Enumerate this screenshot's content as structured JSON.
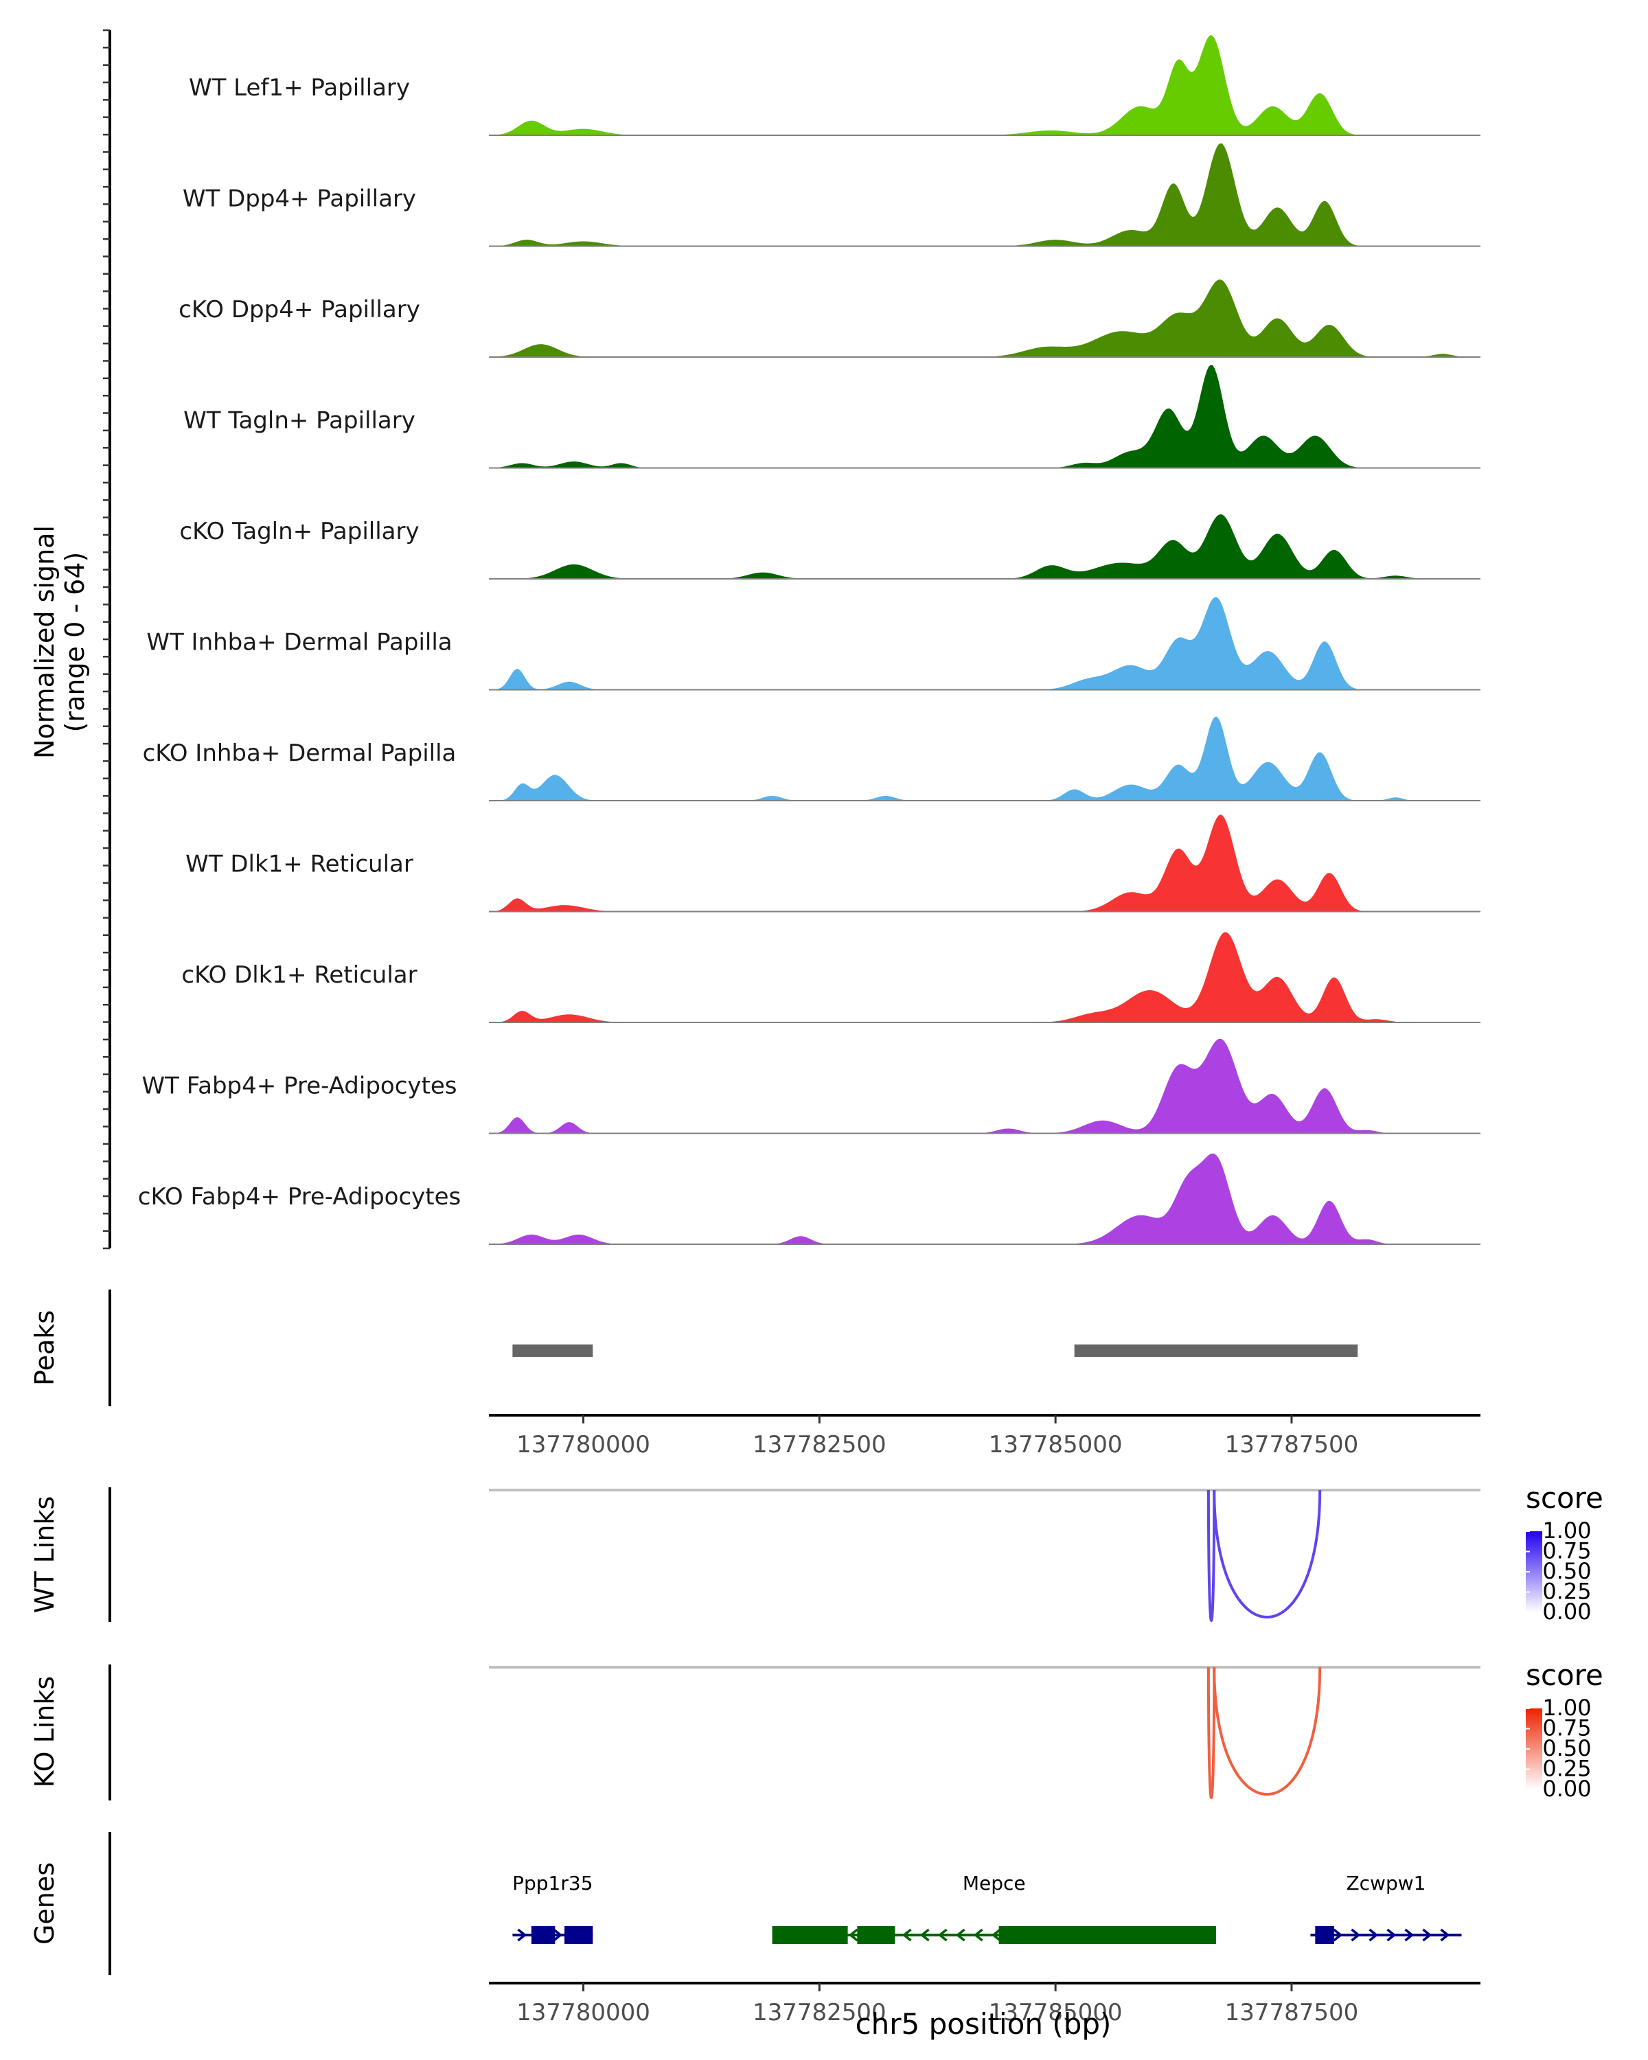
{
  "chart_data": {
    "type": "area",
    "chromosome": "chr5",
    "xlabel": "chr5 position (bp)",
    "xlim": [
      137779000,
      137789500
    ],
    "x_ticks": [
      137780000,
      137782500,
      137785000,
      137787500
    ],
    "x_tick_labels": [
      "137780000",
      "137782500",
      "137785000",
      "137787500"
    ],
    "coverage": {
      "ylabel_line1": "Normalized signal",
      "ylabel_line2": "(range 0 - 64)",
      "ylim": [
        0,
        64
      ],
      "tracks": [
        {
          "name": "WT Lef1+ Papillary",
          "color": "#66CC00",
          "peaks": [
            [
              137779450,
              9,
              140
            ],
            [
              137780000,
              4,
              200
            ],
            [
              137784950,
              3,
              250
            ],
            [
              137785900,
              18,
              200
            ],
            [
              137786300,
              42,
              110
            ],
            [
              137786650,
              62,
              140
            ],
            [
              137787300,
              18,
              160
            ],
            [
              137787800,
              26,
              130
            ]
          ]
        },
        {
          "name": "WT Dpp4+ Papillary",
          "color": "#4C8C00",
          "peaks": [
            [
              137779400,
              4,
              120
            ],
            [
              137780000,
              3,
              200
            ],
            [
              137785000,
              4,
              200
            ],
            [
              137785800,
              10,
              200
            ],
            [
              137786250,
              38,
              120
            ],
            [
              137786750,
              64,
              150
            ],
            [
              137787350,
              24,
              150
            ],
            [
              137787850,
              28,
              120
            ]
          ]
        },
        {
          "name": "cKO Dpp4+ Papillary",
          "color": "#4C8C00",
          "peaks": [
            [
              137779550,
              8,
              180
            ],
            [
              137784900,
              6,
              240
            ],
            [
              137785700,
              16,
              300
            ],
            [
              137786300,
              24,
              180
            ],
            [
              137786750,
              47,
              170
            ],
            [
              137787350,
              24,
              160
            ],
            [
              137787900,
              20,
              150
            ],
            [
              137789100,
              2,
              100
            ]
          ]
        },
        {
          "name": "WT Tagln+ Papillary",
          "color": "#006400",
          "peaks": [
            [
              137779350,
              3,
              120
            ],
            [
              137779900,
              4,
              150
            ],
            [
              137780400,
              3,
              100
            ],
            [
              137785300,
              3,
              130
            ],
            [
              137785800,
              10,
              180
            ],
            [
              137786200,
              36,
              140
            ],
            [
              137786650,
              64,
              130
            ],
            [
              137787200,
              20,
              160
            ],
            [
              137787750,
              20,
              160
            ]
          ]
        },
        {
          "name": "cKO Tagln+ Papillary",
          "color": "#006400",
          "peaks": [
            [
              137779900,
              9,
              200
            ],
            [
              137781900,
              4,
              160
            ],
            [
              137784950,
              8,
              160
            ],
            [
              137785700,
              10,
              300
            ],
            [
              137786250,
              22,
              150
            ],
            [
              137786750,
              40,
              160
            ],
            [
              137787350,
              28,
              160
            ],
            [
              137787950,
              18,
              130
            ],
            [
              137788600,
              2,
              120
            ]
          ]
        },
        {
          "name": "WT Inhba+ Dermal Papilla",
          "color": "#56B0EA",
          "peaks": [
            [
              137779300,
              13,
              80
            ],
            [
              137779850,
              5,
              120
            ],
            [
              137785350,
              6,
              180
            ],
            [
              137785800,
              15,
              200
            ],
            [
              137786300,
              30,
              140
            ],
            [
              137786700,
              57,
              150
            ],
            [
              137787250,
              24,
              170
            ],
            [
              137787850,
              30,
              120
            ]
          ]
        },
        {
          "name": "cKO Inhba+ Dermal Papilla",
          "color": "#56B0EA",
          "peaks": [
            [
              137779350,
              10,
              80
            ],
            [
              137779700,
              16,
              140
            ],
            [
              137782000,
              3,
              100
            ],
            [
              137783200,
              3,
              100
            ],
            [
              137785200,
              7,
              110
            ],
            [
              137785800,
              10,
              180
            ],
            [
              137786300,
              22,
              130
            ],
            [
              137786700,
              52,
              120
            ],
            [
              137787250,
              24,
              170
            ],
            [
              137787800,
              30,
              120
            ],
            [
              137788600,
              2,
              80
            ]
          ]
        },
        {
          "name": "WT Dlk1+ Reticular",
          "color": "#F73333",
          "peaks": [
            [
              137779300,
              8,
              90
            ],
            [
              137779800,
              4,
              200
            ],
            [
              137785800,
              12,
              200
            ],
            [
              137786300,
              38,
              140
            ],
            [
              137786750,
              60,
              150
            ],
            [
              137787350,
              20,
              160
            ],
            [
              137787900,
              24,
              120
            ]
          ]
        },
        {
          "name": "cKO Dlk1+ Reticular",
          "color": "#F73333",
          "peaks": [
            [
              137779350,
              7,
              90
            ],
            [
              137779850,
              5,
              200
            ],
            [
              137785400,
              5,
              200
            ],
            [
              137786000,
              20,
              250
            ],
            [
              137786800,
              56,
              170
            ],
            [
              137787350,
              28,
              160
            ],
            [
              137787950,
              28,
              120
            ],
            [
              137788400,
              2,
              120
            ]
          ]
        },
        {
          "name": "WT Fabp4+ Pre-Adipocytes",
          "color": "#AD42E3",
          "peaks": [
            [
              137779300,
              10,
              80
            ],
            [
              137779850,
              7,
              90
            ],
            [
              137784500,
              3,
              120
            ],
            [
              137785500,
              8,
              200
            ],
            [
              137786300,
              40,
              160
            ],
            [
              137786750,
              58,
              180
            ],
            [
              137787300,
              24,
              150
            ],
            [
              137787850,
              28,
              130
            ],
            [
              137788300,
              2,
              100
            ]
          ]
        },
        {
          "name": "cKO Fabp4+ Pre-Adipocytes",
          "color": "#AD42E3",
          "peaks": [
            [
              137779450,
              6,
              140
            ],
            [
              137779950,
              6,
              150
            ],
            [
              137782300,
              5,
              110
            ],
            [
              137785900,
              18,
              250
            ],
            [
              137786400,
              34,
              140
            ],
            [
              137786700,
              52,
              150
            ],
            [
              137787300,
              18,
              150
            ],
            [
              137787900,
              27,
              120
            ],
            [
              137788300,
              3,
              100
            ]
          ]
        }
      ]
    },
    "peaks_track": {
      "label": "Peaks",
      "color": "#666666",
      "ranges": [
        [
          137779250,
          137780100
        ],
        [
          137785200,
          137788200
        ]
      ]
    },
    "links": [
      {
        "label": "WT Links",
        "legend_title": "score",
        "color_low": "#FFFFFF",
        "color_high": "#2200EE",
        "line_color": "#6244EE",
        "legend_ticks": [
          "1.00",
          "0.75",
          "0.50",
          "0.25",
          "0.00"
        ],
        "arcs": [
          [
            137786620,
            137786680
          ],
          [
            137786680,
            137787800
          ]
        ]
      },
      {
        "label": "KO Links",
        "legend_title": "score",
        "color_low": "#FFFFFF",
        "color_high": "#EE2200",
        "line_color": "#F06040",
        "legend_ticks": [
          "1.00",
          "0.75",
          "0.50",
          "0.25",
          "0.00"
        ],
        "arcs": [
          [
            137786620,
            137786680
          ],
          [
            137786680,
            137787800
          ]
        ]
      }
    ],
    "genes": {
      "label": "Genes",
      "items": [
        {
          "name": "Ppp1r35",
          "color": "#00008B",
          "start": 137779250,
          "end": 137780100,
          "strand": "+",
          "exons": [
            [
              137779450,
              137779700
            ],
            [
              137779800,
              137780100
            ]
          ]
        },
        {
          "name": "Mepce",
          "color": "#006400",
          "start": 137782000,
          "end": 137786700,
          "strand": "-",
          "exons": [
            [
              137782000,
              137782800
            ],
            [
              137782900,
              137783300
            ],
            [
              137784400,
              137786700
            ]
          ]
        },
        {
          "name": "Zcwpw1",
          "color": "#00008B",
          "start": 137787700,
          "end": 137789300,
          "strand": "+",
          "exons": [
            [
              137787750,
              137787950
            ]
          ]
        }
      ]
    }
  }
}
